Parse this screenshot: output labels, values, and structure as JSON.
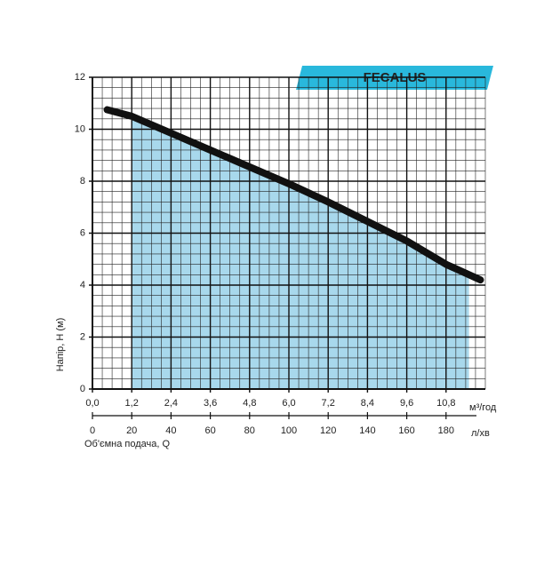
{
  "chart_data": {
    "type": "line",
    "title": "FECALUS",
    "x_label": "Об'ємна подача, Q",
    "y_label": "Напір, Н (м)",
    "x_unit": "м³/год",
    "x2_unit": "л/хв",
    "xlim": [
      0,
      12
    ],
    "ylim": [
      0,
      12
    ],
    "xticks": [
      {
        "value": 0,
        "label": "0,0"
      },
      {
        "value": 1.2,
        "label": "1,2"
      },
      {
        "value": 2.4,
        "label": "2,4"
      },
      {
        "value": 3.6,
        "label": "3,6"
      },
      {
        "value": 4.8,
        "label": "4,8"
      },
      {
        "value": 6.0,
        "label": "6,0"
      },
      {
        "value": 7.2,
        "label": "7,2"
      },
      {
        "value": 8.4,
        "label": "8,4"
      },
      {
        "value": 9.6,
        "label": "9,6"
      },
      {
        "value": 10.8,
        "label": "10,8"
      }
    ],
    "x2lim": [
      0,
      200
    ],
    "x2ticks": [
      0,
      20,
      40,
      60,
      80,
      100,
      120,
      140,
      160,
      180
    ],
    "yticks": [
      0,
      2,
      4,
      6,
      8,
      10,
      12
    ],
    "grid": true,
    "minor_step_x": 0.3,
    "minor_step_y": 0.4,
    "shade": {
      "range": [
        1.2,
        11.5
      ],
      "color": "#a8d8ec"
    },
    "series": [
      {
        "color": "#111111",
        "x": [
          0.45,
          1.2,
          2.4,
          3.6,
          4.8,
          6.0,
          7.2,
          8.4,
          9.6,
          10.8,
          11.85
        ],
        "values": [
          10.75,
          10.5,
          9.85,
          9.2,
          8.55,
          7.9,
          7.2,
          6.45,
          5.7,
          4.8,
          4.2
        ]
      }
    ],
    "title_color": "#29b8dc"
  }
}
